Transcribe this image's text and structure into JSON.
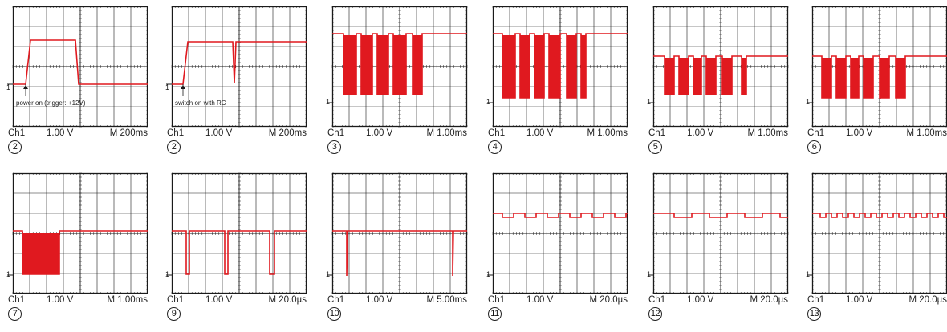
{
  "colors": {
    "trace": "#e0191f",
    "grid": "#1a1a1a",
    "text": "#222222"
  },
  "channel_marker": "1",
  "scopes": [
    {
      "index": "2",
      "channel": "Ch1",
      "volts": "1.00 V",
      "timebase": "M  200ms",
      "note": "power on (trigger: +12V)"
    },
    {
      "index": "2",
      "channel": "Ch1",
      "volts": "1.00 V",
      "timebase": "M  200ms",
      "note": "switch on with RC"
    },
    {
      "index": "3",
      "channel": "Ch1",
      "volts": "1.00 V",
      "timebase": "M 1.00ms"
    },
    {
      "index": "4",
      "channel": "Ch1",
      "volts": "1.00 V",
      "timebase": "M 1.00ms"
    },
    {
      "index": "5",
      "channel": "Ch1",
      "volts": "1.00 V",
      "timebase": "M 1.00ms"
    },
    {
      "index": "6",
      "channel": "Ch1",
      "volts": "1.00 V",
      "timebase": "M 1.00ms"
    },
    {
      "index": "7",
      "channel": "Ch1",
      "volts": "1.00 V",
      "timebase": "M 1.00ms"
    },
    {
      "index": "9",
      "channel": "Ch1",
      "volts": "1.00 V",
      "timebase": "M 20.0µs"
    },
    {
      "index": "10",
      "channel": "Ch1",
      "volts": "1.00 V",
      "timebase": "M 5.00ms"
    },
    {
      "index": "11",
      "channel": "Ch1",
      "volts": "1.00 V",
      "timebase": "M 20.0µs"
    },
    {
      "index": "12",
      "channel": "Ch1",
      "volts": "1.00 V",
      "timebase": "M 20.0µs"
    },
    {
      "index": "13",
      "channel": "Ch1",
      "volts": "1.00 V",
      "timebase": "M 20.0µs"
    }
  ]
}
